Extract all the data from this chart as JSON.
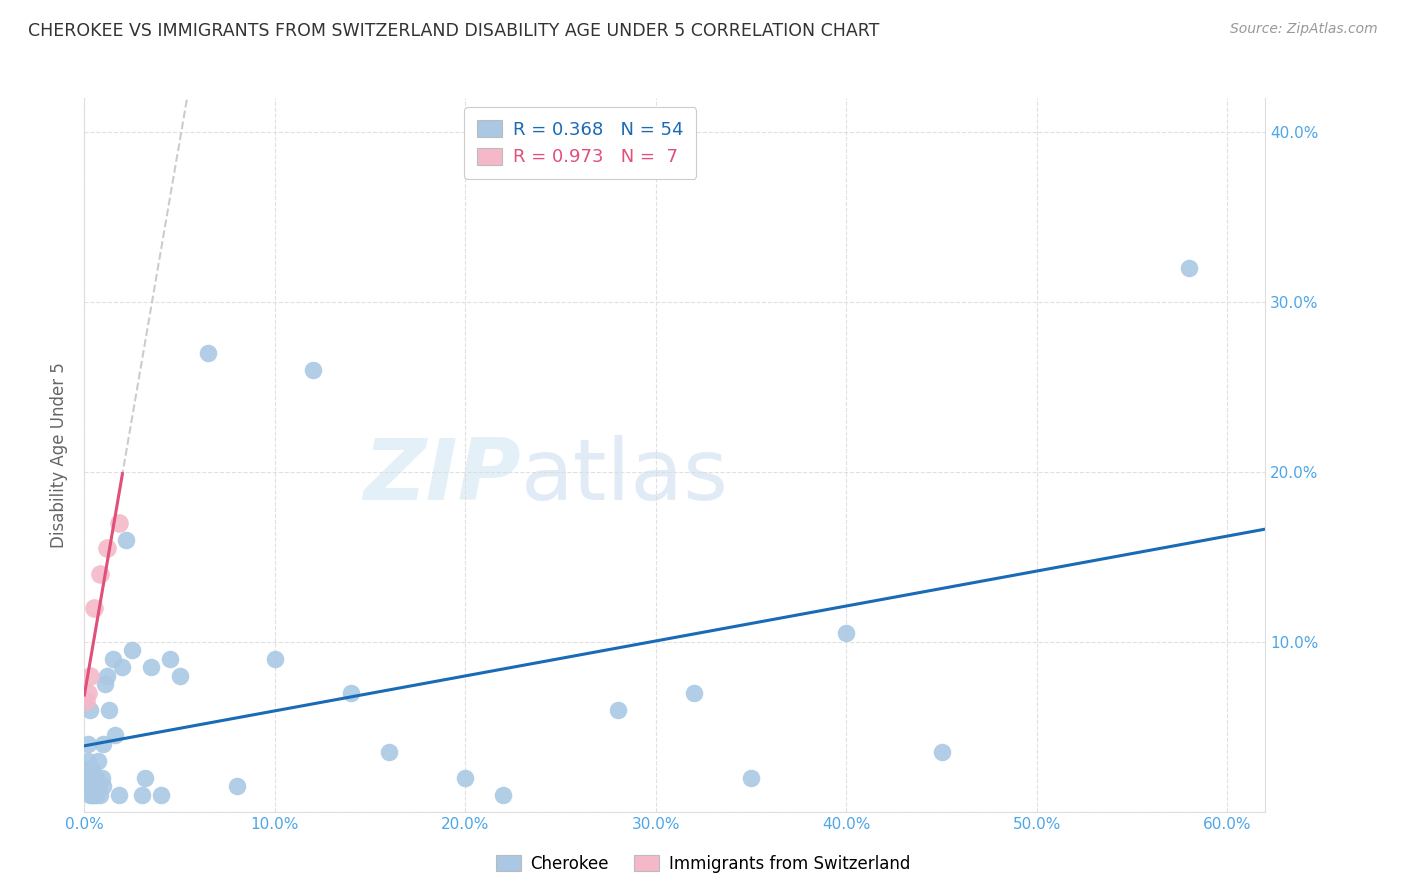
{
  "title": "CHEROKEE VS IMMIGRANTS FROM SWITZERLAND DISABILITY AGE UNDER 5 CORRELATION CHART",
  "source": "Source: ZipAtlas.com",
  "ylabel": "Disability Age Under 5",
  "xlim": [
    0.0,
    0.62
  ],
  "ylim": [
    0.0,
    0.42
  ],
  "xticks": [
    0.0,
    0.1,
    0.2,
    0.3,
    0.4,
    0.5,
    0.6
  ],
  "xticklabels": [
    "0.0%",
    "10.0%",
    "20.0%",
    "30.0%",
    "40.0%",
    "50.0%",
    "60.0%"
  ],
  "yticks": [
    0.0,
    0.1,
    0.2,
    0.3,
    0.4
  ],
  "yticklabels": [
    "",
    "10.0%",
    "20.0%",
    "30.0%",
    "40.0%"
  ],
  "cherokee_x": [
    0.001,
    0.001,
    0.002,
    0.002,
    0.002,
    0.002,
    0.003,
    0.003,
    0.003,
    0.003,
    0.003,
    0.004,
    0.004,
    0.004,
    0.005,
    0.005,
    0.005,
    0.006,
    0.006,
    0.007,
    0.007,
    0.008,
    0.009,
    0.01,
    0.01,
    0.011,
    0.012,
    0.013,
    0.015,
    0.016,
    0.018,
    0.02,
    0.022,
    0.025,
    0.03,
    0.032,
    0.035,
    0.04,
    0.045,
    0.05,
    0.065,
    0.08,
    0.1,
    0.12,
    0.14,
    0.16,
    0.2,
    0.22,
    0.28,
    0.32,
    0.35,
    0.4,
    0.45,
    0.58
  ],
  "cherokee_y": [
    0.02,
    0.025,
    0.015,
    0.02,
    0.03,
    0.04,
    0.01,
    0.015,
    0.02,
    0.025,
    0.06,
    0.01,
    0.015,
    0.025,
    0.01,
    0.015,
    0.02,
    0.01,
    0.02,
    0.015,
    0.03,
    0.01,
    0.02,
    0.015,
    0.04,
    0.075,
    0.08,
    0.06,
    0.09,
    0.045,
    0.01,
    0.085,
    0.16,
    0.095,
    0.01,
    0.02,
    0.085,
    0.01,
    0.09,
    0.08,
    0.27,
    0.015,
    0.09,
    0.26,
    0.07,
    0.035,
    0.02,
    0.01,
    0.06,
    0.07,
    0.02,
    0.105,
    0.035,
    0.32
  ],
  "swiss_x": [
    0.001,
    0.002,
    0.003,
    0.005,
    0.008,
    0.012,
    0.018
  ],
  "swiss_y": [
    0.065,
    0.07,
    0.08,
    0.12,
    0.14,
    0.155,
    0.17
  ],
  "cherokee_color": "#aac8e4",
  "swiss_color": "#f5b8c8",
  "cherokee_line_color": "#1a6bb5",
  "swiss_line_color": "#e0507a",
  "legend_r_cherokee": "R = 0.368",
  "legend_n_cherokee": "N = 54",
  "legend_r_swiss": "R = 0.973",
  "legend_n_swiss": "N =  7",
  "watermark_zip": "ZIP",
  "watermark_atlas": "atlas",
  "background_color": "#ffffff",
  "grid_color": "#dddddd"
}
